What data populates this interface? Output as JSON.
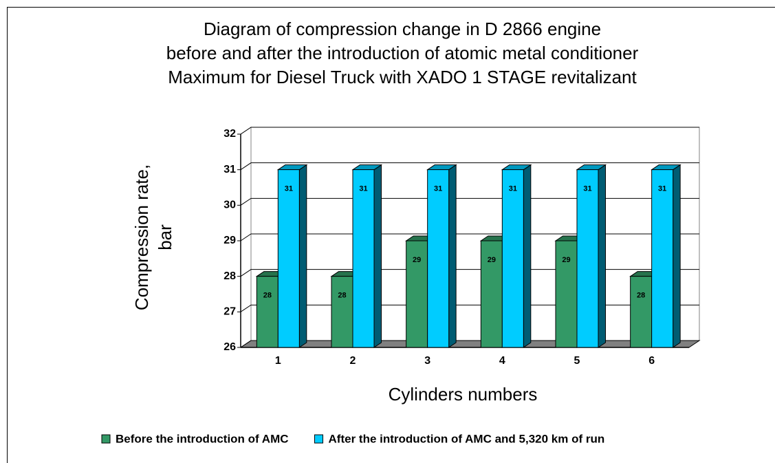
{
  "chart_data": {
    "type": "bar3d",
    "title": [
      "Diagram of compression change in D 2866 engine",
      "before and after the introduction of atomic metal conditioner",
      "Maximum for Diesel Truck with XADO 1 STAGE revitalizant"
    ],
    "ylabel": [
      "Compression rate,",
      "bar"
    ],
    "xlabel": "Cylinders numbers",
    "categories": [
      "1",
      "2",
      "3",
      "4",
      "5",
      "6"
    ],
    "series": [
      {
        "name": "Before the introduction of AMC",
        "color": "#339966",
        "values": [
          28,
          28,
          29,
          29,
          29,
          28
        ]
      },
      {
        "name": "After the introduction of AMC and 5,320 km of run",
        "color": "#00ccff",
        "values": [
          31,
          31,
          31,
          31,
          31,
          31
        ]
      }
    ],
    "ylim": [
      26,
      32
    ],
    "yticks": [
      26,
      27,
      28,
      29,
      30,
      31,
      32
    ],
    "grid": true,
    "legend": "bottom"
  }
}
